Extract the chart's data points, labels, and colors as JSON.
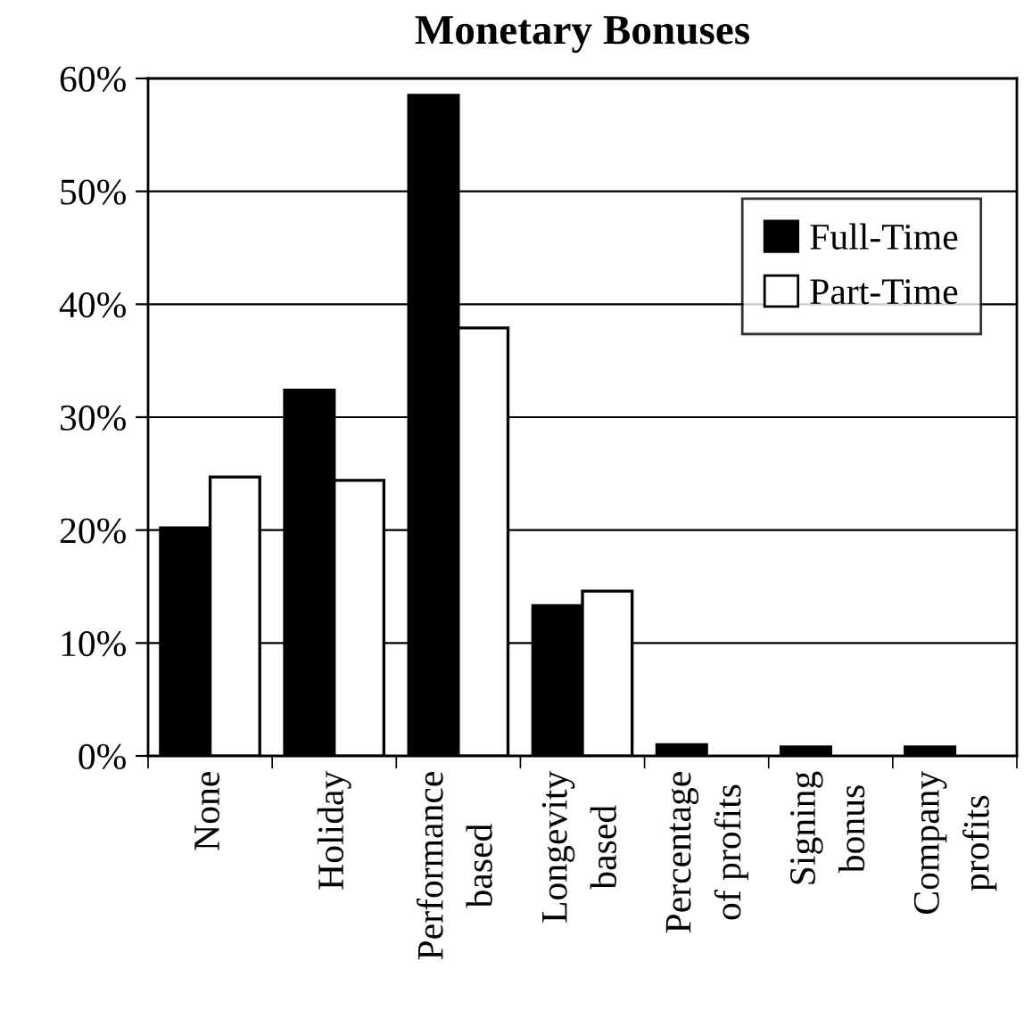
{
  "chart_data": {
    "type": "bar",
    "title": "Monetary Bonuses",
    "categories": [
      "None",
      "Holiday",
      "Performance\nbased",
      "Longevity\nbased",
      "Percentage\nof profits",
      "Signing\nbonus",
      "Company\nprofits"
    ],
    "series": [
      {
        "name": "Full-Time",
        "color": "#000000",
        "values": [
          20.2,
          32.4,
          58.5,
          13.3,
          1.0,
          0.8,
          0.8
        ]
      },
      {
        "name": "Part-Time",
        "color": "#ffffff",
        "values": [
          24.7,
          24.4,
          37.9,
          14.6,
          null,
          null,
          null
        ]
      }
    ],
    "ylim": [
      0,
      60
    ],
    "yticks": [
      {
        "value": 0,
        "label": "0%"
      },
      {
        "value": 10,
        "label": "10%"
      },
      {
        "value": 20,
        "label": "20%"
      },
      {
        "value": 30,
        "label": "30%"
      },
      {
        "value": 40,
        "label": "40%"
      },
      {
        "value": 50,
        "label": "50%"
      },
      {
        "value": 60,
        "label": "60%"
      }
    ],
    "grid": "y",
    "legend": "top right"
  }
}
